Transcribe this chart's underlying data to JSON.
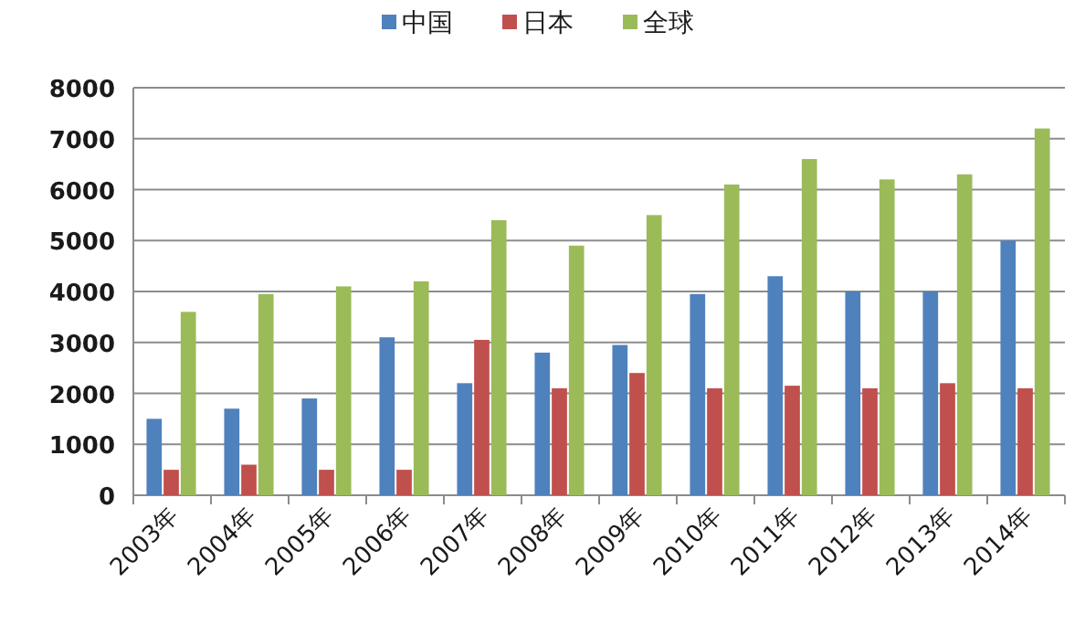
{
  "chart_data": {
    "type": "bar",
    "categories": [
      "2003年",
      "2004年",
      "2005年",
      "2006年",
      "2007年",
      "2008年",
      "2009年",
      "2010年",
      "2011年",
      "2012年",
      "2013年",
      "2014年"
    ],
    "series": [
      {
        "name": "中国",
        "color": "#4f81bd",
        "values": [
          1500,
          1700,
          1900,
          3100,
          2200,
          2800,
          2950,
          3950,
          4300,
          4000,
          4000,
          5000
        ]
      },
      {
        "name": "日本",
        "color": "#c0504d",
        "values": [
          500,
          600,
          500,
          500,
          3050,
          2100,
          2400,
          2100,
          2150,
          2100,
          2200,
          2100
        ]
      },
      {
        "name": "全球",
        "color": "#9bbb59",
        "values": [
          3600,
          3950,
          4100,
          4200,
          5400,
          4900,
          5500,
          6100,
          6600,
          6200,
          6300,
          7200
        ]
      }
    ],
    "ylim": [
      0,
      8000
    ],
    "yticks": [
      0,
      1000,
      2000,
      3000,
      4000,
      5000,
      6000,
      7000,
      8000
    ],
    "grid": "y",
    "legend": "top"
  }
}
